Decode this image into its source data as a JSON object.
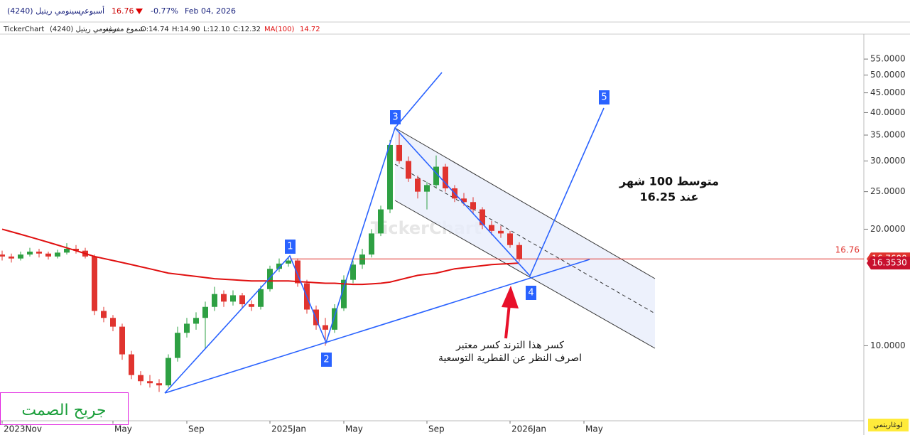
{
  "header": {
    "symbol": "سينومي ريتيل (4240)",
    "period": "أسبوعي",
    "price": "16.76",
    "change": "-0.77%",
    "date": "Feb 04, 2026",
    "source": "TickerChart",
    "symbol_short": "سينومي ريتيل (4240)",
    "candle_style": "شموع مفرغة",
    "open": "O:14.74",
    "high": "H:14.90",
    "low": "L:12.10",
    "close": "C:12.32",
    "ma_value": "14.72"
  },
  "chart_data": {
    "type": "candlestick",
    "categories": [
      "2023Nov",
      null,
      null,
      null,
      null,
      null,
      null,
      null,
      null,
      null,
      null,
      null,
      "May",
      null,
      null,
      null,
      null,
      null,
      null,
      null,
      "Sep",
      null,
      null,
      null,
      null,
      null,
      null,
      null,
      null,
      "2025Jan",
      null,
      null,
      null,
      null,
      null,
      null,
      null,
      "May",
      null,
      null,
      null,
      null,
      null,
      null,
      null,
      null,
      "Sep",
      null,
      null,
      null,
      null,
      null,
      null,
      null,
      null,
      "2026Jan",
      null,
      null,
      null,
      null,
      null,
      null,
      null,
      "May",
      null,
      null,
      null,
      null,
      null,
      null,
      null
    ],
    "open": [
      17.2,
      17.0,
      16.8,
      17.2,
      17.5,
      17.3,
      17.0,
      17.4,
      17.8,
      17.6,
      17.0,
      12.3,
      11.8,
      11.2,
      9.5,
      8.4,
      8.1,
      8.0,
      7.9,
      9.3,
      10.8,
      11.4,
      11.8,
      12.6,
      13.6,
      13.0,
      13.5,
      12.8,
      12.6,
      14.0,
      15.8,
      16.3,
      16.6,
      14.5,
      12.4,
      11.3,
      11.0,
      12.5,
      14.8,
      16.2,
      17.2,
      19.5,
      22.5,
      33.0,
      30.0,
      27.0,
      25.0,
      26.0,
      29.0,
      25.5,
      24.0,
      23.5,
      22.5,
      20.5,
      19.8,
      19.5,
      18.2,
      null,
      null,
      null,
      null,
      null,
      null,
      null,
      null,
      null,
      null,
      null,
      null,
      null,
      null
    ],
    "high": [
      17.6,
      17.3,
      17.5,
      17.9,
      17.8,
      17.5,
      17.7,
      18.4,
      18.2,
      17.9,
      17.2,
      12.6,
      12.0,
      11.4,
      9.7,
      8.6,
      8.4,
      8.2,
      9.5,
      11.2,
      11.8,
      12.2,
      13.0,
      14.2,
      13.9,
      13.9,
      13.7,
      13.1,
      14.3,
      16.1,
      16.8,
      17.0,
      16.8,
      14.8,
      12.7,
      11.8,
      12.8,
      15.2,
      16.6,
      17.8,
      20.0,
      23.0,
      34.0,
      35.5,
      30.8,
      27.5,
      26.5,
      31.0,
      29.5,
      26.0,
      24.8,
      24.2,
      22.8,
      21.0,
      20.4,
      19.8,
      18.5,
      null,
      null,
      null,
      null,
      null,
      null,
      null,
      null,
      null,
      null,
      null,
      null,
      null,
      null
    ],
    "low": [
      16.6,
      16.4,
      16.6,
      17.0,
      16.9,
      16.7,
      16.8,
      17.2,
      17.3,
      16.8,
      12.0,
      11.5,
      10.9,
      9.2,
      8.2,
      7.9,
      7.8,
      7.6,
      7.8,
      9.1,
      10.5,
      11.0,
      9.8,
      12.3,
      12.6,
      12.7,
      12.5,
      12.3,
      12.4,
      13.8,
      15.5,
      16.0,
      14.2,
      12.1,
      11.0,
      10.0,
      10.8,
      12.3,
      14.5,
      15.8,
      16.9,
      19.2,
      22.0,
      29.5,
      26.5,
      24.0,
      22.5,
      25.5,
      25.0,
      23.5,
      23.0,
      22.0,
      20.0,
      19.3,
      19.0,
      17.9,
      16.5,
      null,
      null,
      null,
      null,
      null,
      null,
      null,
      null,
      null,
      null,
      null,
      null,
      null,
      null
    ],
    "close": [
      17.0,
      16.8,
      17.2,
      17.5,
      17.3,
      17.0,
      17.4,
      17.8,
      17.6,
      17.0,
      12.3,
      11.8,
      11.2,
      9.5,
      8.4,
      8.1,
      8.0,
      7.9,
      9.3,
      10.8,
      11.4,
      11.8,
      12.6,
      13.6,
      13.0,
      13.5,
      12.8,
      12.6,
      14.0,
      15.8,
      16.3,
      16.6,
      14.5,
      12.4,
      11.3,
      11.0,
      12.5,
      14.8,
      16.2,
      17.2,
      19.5,
      22.5,
      33.0,
      30.0,
      27.0,
      25.0,
      26.0,
      29.0,
      25.5,
      24.0,
      23.5,
      22.5,
      20.5,
      19.8,
      19.5,
      18.2,
      16.76,
      null,
      null,
      null,
      null,
      null,
      null,
      null,
      null,
      null,
      null,
      null,
      null,
      null,
      null
    ],
    "up_color": "#2ea043",
    "down_color": "#e0342f",
    "ma": {
      "name": "MA(100)",
      "color": "#e01010",
      "values": [
        20.0,
        19.7,
        19.4,
        19.1,
        18.8,
        18.5,
        18.2,
        17.9,
        17.6,
        17.3,
        17.0,
        16.8,
        16.6,
        16.4,
        16.2,
        16.0,
        15.8,
        15.6,
        15.4,
        15.3,
        15.2,
        15.1,
        15.0,
        14.9,
        14.85,
        14.8,
        14.75,
        14.7,
        14.7,
        14.7,
        14.7,
        14.7,
        14.65,
        14.6,
        14.55,
        14.5,
        14.5,
        14.45,
        14.4,
        14.4,
        14.45,
        14.5,
        14.6,
        14.8,
        15.0,
        15.2,
        15.3,
        15.4,
        15.6,
        15.8,
        15.9,
        16.0,
        16.1,
        16.2,
        16.25,
        16.3,
        16.353,
        null,
        null,
        null,
        null,
        null,
        null,
        null,
        null,
        null,
        null,
        null,
        null,
        null,
        null
      ]
    },
    "log_scale": true,
    "ylim": [
      6.4,
      63.8
    ],
    "yticks": [
      {
        "value": 10,
        "label": "10.0000"
      },
      {
        "value": 20,
        "label": "20.0000"
      },
      {
        "value": 25,
        "label": "25.0000"
      },
      {
        "value": 30,
        "label": "30.0000"
      },
      {
        "value": 35,
        "label": "35.0000"
      },
      {
        "value": 40,
        "label": "40.0000"
      },
      {
        "value": 45,
        "label": "45.0000"
      },
      {
        "value": 50,
        "label": "50.0000"
      },
      {
        "value": 55,
        "label": "55.0000"
      }
    ],
    "last_price": 16.76,
    "price_labels": [
      {
        "value": 16.76,
        "label": "16.7600",
        "color": "#e0342f"
      },
      {
        "value": 16.353,
        "label": "16.3530",
        "color": "#c8102e"
      }
    ],
    "scale_mode": "لوغاريتمي",
    "watermark": "TickerChart",
    "waves": [
      "1",
      "2",
      "3",
      "4",
      "5"
    ],
    "annotations": {
      "ma_note_1": "متوسط 100 شهر",
      "ma_note_2": "عند  16.25",
      "break_1": "كسر هذا الترند كسر معتبر",
      "break_2": "اصرف النظر عن القطرية التوسعية",
      "signature": "جريح الصمت"
    }
  }
}
